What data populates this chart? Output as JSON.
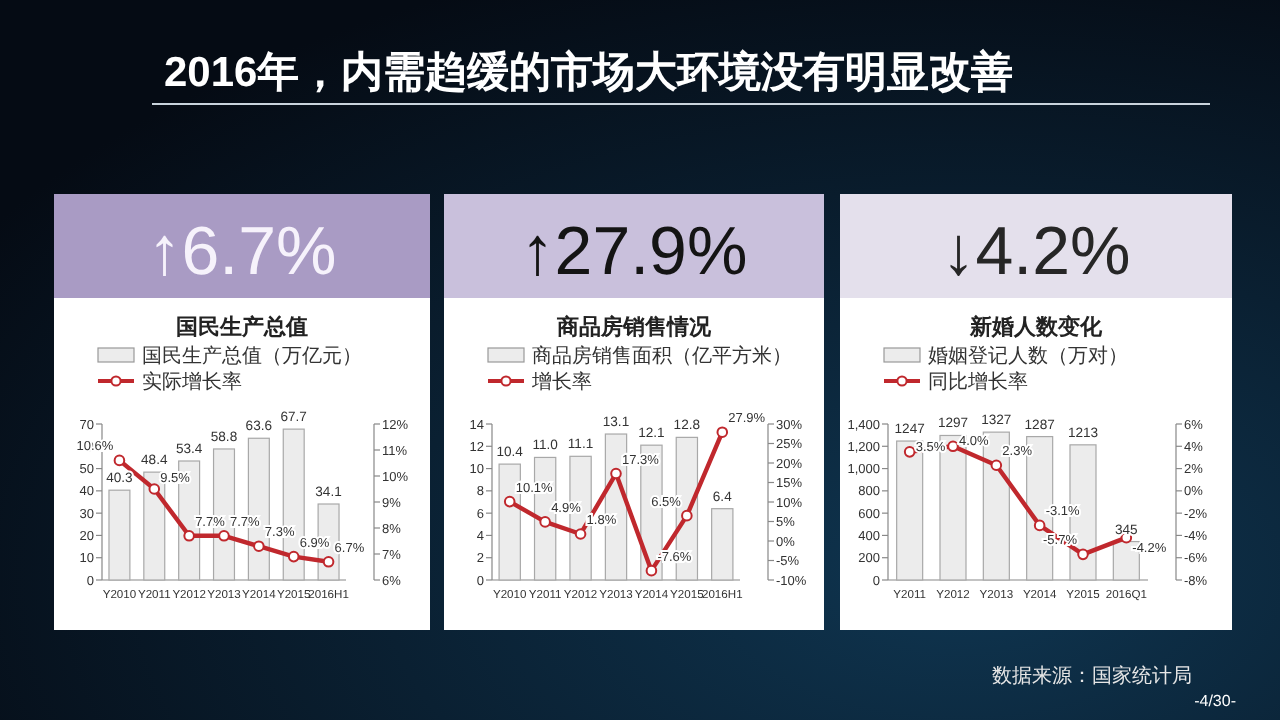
{
  "chart_data": [
    {
      "type": "other",
      "title": "2016年，内需趋缓的市场大环境没有明显改善",
      "annotations": [
        "数据来源：国家统计局",
        "-4/30-"
      ]
    },
    {
      "type": "bar",
      "title": "国民生产总值",
      "annotations": [
        "↑6.7%"
      ],
      "categories": [
        "Y2010",
        "Y2011",
        "Y2012",
        "Y2013",
        "Y2014",
        "Y2015",
        "2016H1"
      ],
      "series": [
        {
          "name": "国民生产总值（万亿元）",
          "type": "bar",
          "color": "#ececec",
          "values": [
            40.3,
            48.4,
            53.4,
            58.8,
            63.6,
            67.7,
            34.1
          ],
          "value_labels": [
            "40.3",
            "48.4",
            "53.4",
            "58.8",
            "63.6",
            "67.7",
            "34.1"
          ]
        },
        {
          "name": "实际增长率",
          "type": "line",
          "axis": "y2",
          "color": "#c0282d",
          "values": [
            10.6,
            9.5,
            7.7,
            7.7,
            7.3,
            6.9,
            6.7
          ],
          "value_labels": [
            "10.6%",
            "9.5%",
            "7.7%",
            "7.7%",
            "7.3%",
            "6.9%",
            "6.7%"
          ]
        }
      ],
      "ylim": [
        0,
        70
      ],
      "yticks": [
        0,
        10,
        20,
        30,
        40,
        50,
        60,
        70
      ],
      "y2lim": [
        6,
        12
      ],
      "y2ticks": [
        {
          "value": 6,
          "label": "6%"
        },
        {
          "value": 7,
          "label": "7%"
        },
        {
          "value": 8,
          "label": "8%"
        },
        {
          "value": 9,
          "label": "9%"
        },
        {
          "value": 10,
          "label": "10%"
        },
        {
          "value": 11,
          "label": "11%"
        },
        {
          "value": 12,
          "label": "12%"
        }
      ],
      "legend": "top",
      "marker": "circle"
    },
    {
      "type": "bar",
      "title": "商品房销售情况",
      "annotations": [
        "↑27.9%"
      ],
      "categories": [
        "Y2010",
        "Y2011",
        "Y2012",
        "Y2013",
        "Y2014",
        "Y2015",
        "2016H1"
      ],
      "series": [
        {
          "name": "商品房销售面积（亿平方米）",
          "type": "bar",
          "color": "#ececec",
          "values": [
            10.4,
            11.0,
            11.1,
            13.1,
            12.1,
            12.8,
            6.4
          ],
          "value_labels": [
            "10.4",
            "11.0",
            "11.1",
            "13.1",
            "12.1",
            "12.8",
            "6.4"
          ]
        },
        {
          "name": "增长率",
          "type": "line",
          "axis": "y2",
          "color": "#c0282d",
          "values": [
            10.1,
            4.9,
            1.8,
            17.3,
            -7.6,
            6.5,
            27.9
          ],
          "value_labels": [
            "10.1%",
            "4.9%",
            "1.8%",
            "17.3%",
            "-7.6%",
            "6.5%",
            "27.9%"
          ]
        }
      ],
      "ylim": [
        0,
        14
      ],
      "yticks": [
        0,
        2,
        4,
        6,
        8,
        10,
        12,
        14
      ],
      "y2lim": [
        -10,
        30
      ],
      "y2ticks": [
        {
          "value": -10,
          "label": "-10%"
        },
        {
          "value": -5,
          "label": "-5%"
        },
        {
          "value": 0,
          "label": "0%"
        },
        {
          "value": 5,
          "label": "5%"
        },
        {
          "value": 10,
          "label": "10%"
        },
        {
          "value": 15,
          "label": "15%"
        },
        {
          "value": 20,
          "label": "20%"
        },
        {
          "value": 25,
          "label": "25%"
        },
        {
          "value": 30,
          "label": "30%"
        }
      ],
      "legend": "top",
      "marker": "circle"
    },
    {
      "type": "bar",
      "title": "新婚人数变化",
      "annotations": [
        "↓4.2%"
      ],
      "categories": [
        "Y2011",
        "Y2012",
        "Y2013",
        "Y2014",
        "Y2015",
        "2016Q1"
      ],
      "series": [
        {
          "name": "婚姻登记人数（万对）",
          "type": "bar",
          "color": "#ececec",
          "values": [
            1247,
            1297,
            1327,
            1287,
            1213,
            345
          ],
          "value_labels": [
            "1247",
            "1297",
            "1327",
            "1287",
            "1213",
            "345"
          ]
        },
        {
          "name": "同比增长率",
          "type": "line",
          "axis": "y2",
          "color": "#c0282d",
          "values": [
            3.5,
            4.0,
            2.3,
            -3.1,
            -5.7,
            -4.2
          ],
          "value_labels": [
            "3.5%",
            "4.0%",
            "2.3%",
            "-3.1%",
            "-5.7%",
            "-4.2%"
          ]
        }
      ],
      "ylim": [
        0,
        1400
      ],
      "yticks": [
        0,
        {
          "value": 200,
          "label": "200"
        },
        {
          "value": 400,
          "label": "400"
        },
        {
          "value": 600,
          "label": "600"
        },
        {
          "value": 800,
          "label": "800"
        },
        {
          "value": 1000,
          "label": "1,000"
        },
        {
          "value": 1200,
          "label": "1,200"
        },
        {
          "value": 1400,
          "label": "1,400"
        }
      ],
      "y2lim": [
        -8,
        6
      ],
      "y2ticks": [
        {
          "value": -8,
          "label": "-8%"
        },
        {
          "value": -6,
          "label": "-6%"
        },
        {
          "value": -4,
          "label": "-4%"
        },
        {
          "value": -2,
          "label": "-2%"
        },
        {
          "value": 0,
          "label": "0%"
        },
        {
          "value": 2,
          "label": "2%"
        },
        {
          "value": 4,
          "label": "4%"
        },
        {
          "value": 6,
          "label": "6%"
        }
      ],
      "legend": "top",
      "marker": "circle"
    }
  ]
}
